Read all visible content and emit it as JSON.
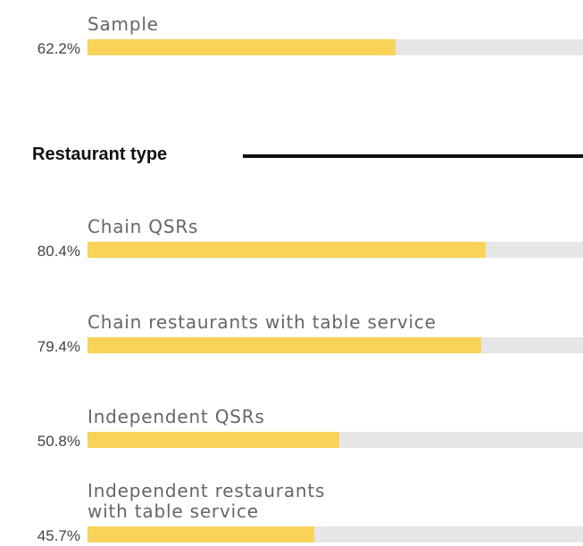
{
  "chart_data": {
    "type": "bar",
    "orientation": "horizontal",
    "section_title": "Restaurant type",
    "categories": [
      "Sample",
      "Chain QSRs",
      "Chain restaurants with table service",
      "Independent QSRs",
      "Independent restaurants\nwith table service"
    ],
    "values": [
      62.2,
      80.4,
      79.4,
      50.8,
      45.7
    ],
    "value_labels": [
      "62.2%",
      "80.4%",
      "79.4%",
      "50.8%",
      "45.7%"
    ],
    "color": "#f9d25a",
    "track_color": "#e6e6e8",
    "xlim": [
      0,
      100
    ]
  }
}
